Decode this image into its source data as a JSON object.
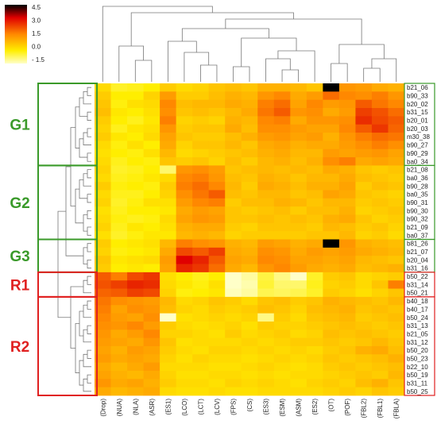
{
  "chart_data": {
    "type": "heatmap",
    "title": "",
    "legend": {
      "position": "top-left",
      "ticks": [
        4.5,
        3.0,
        1.5,
        0.0,
        -1.5
      ],
      "colors": {
        "low": "#ffffc8",
        "mid1": "#ffee00",
        "mid2": "#ff8800",
        "mid3": "#e00000",
        "high": "#000000"
      }
    },
    "columns": [
      "(Drop)",
      "(NUA)",
      "(NLA)",
      "(ASR)",
      "(ES1)",
      "(LCO)",
      "(LCT)",
      "(LCV)",
      "(FPS)",
      "(CS)",
      "(ES3)",
      "(ESM)",
      "(ASM)",
      "(ES2)",
      "(OT)",
      "(POF)",
      "(FBL2)",
      "(FBL1)",
      "(FBLA)"
    ],
    "rows": [
      "b21_06",
      "b90_33",
      "b20_02",
      "b31_15",
      "b20_01",
      "b20_03",
      "m30_38",
      "b90_27",
      "b90_29",
      "ba0_34",
      "b21_08",
      "ba0_36",
      "b90_28",
      "ba0_35",
      "b90_31",
      "b90_30",
      "b90_32",
      "b21_09",
      "ba0_37",
      "b81_26",
      "b21_07",
      "b20_04",
      "b31_16",
      "b50_22",
      "b31_14",
      "b50_21",
      "b40_18",
      "b40_17",
      "b50_24",
      "b31_13",
      "b21_05",
      "b31_12",
      "b50_20",
      "b50_23",
      "b22_10",
      "b50_19",
      "b31_11",
      "b50_25"
    ],
    "groups": [
      {
        "label": "G1",
        "color": "#3a9a2a",
        "rows": [
          0,
          9
        ]
      },
      {
        "label": "G2",
        "color": "#3a9a2a",
        "rows": [
          10,
          18
        ]
      },
      {
        "label": "G3",
        "color": "#3a9a2a",
        "rows": [
          19,
          22
        ]
      },
      {
        "label": "R1",
        "color": "#e02020",
        "rows": [
          23,
          25
        ]
      },
      {
        "label": "R2",
        "color": "#e02020",
        "rows": [
          26,
          37
        ]
      }
    ],
    "values": [
      [
        0.3,
        -0.3,
        -0.2,
        0.0,
        0.5,
        0.3,
        0.4,
        0.6,
        0.7,
        0.6,
        0.9,
        0.9,
        0.8,
        0.6,
        4.5,
        1.3,
        1.2,
        1.0,
        0.9
      ],
      [
        0.5,
        0.0,
        0.0,
        0.4,
        1.2,
        0.5,
        0.5,
        0.7,
        0.9,
        0.8,
        1.3,
        1.5,
        1.0,
        1.2,
        1.8,
        1.5,
        1.4,
        1.6,
        1.3
      ],
      [
        0.6,
        -0.1,
        0.2,
        0.3,
        1.5,
        0.7,
        0.8,
        0.8,
        1.0,
        0.9,
        1.6,
        1.8,
        1.1,
        1.5,
        1.2,
        1.3,
        2.0,
        1.7,
        1.5
      ],
      [
        0.7,
        0.1,
        0.0,
        0.2,
        1.4,
        0.6,
        0.7,
        0.6,
        0.8,
        1.0,
        1.7,
        2.0,
        1.3,
        1.4,
        1.0,
        1.2,
        2.3,
        2.1,
        1.8
      ],
      [
        0.5,
        0.0,
        -0.2,
        0.1,
        1.6,
        0.4,
        0.5,
        0.4,
        0.9,
        0.8,
        1.5,
        1.6,
        1.0,
        1.3,
        1.3,
        1.4,
        2.5,
        2.2,
        2.0
      ],
      [
        0.4,
        -0.2,
        0.1,
        0.2,
        1.3,
        0.5,
        0.6,
        0.6,
        1.0,
        0.7,
        1.4,
        1.4,
        1.2,
        1.1,
        1.1,
        1.5,
        2.0,
        2.4,
        1.9
      ],
      [
        0.5,
        0.1,
        0.0,
        0.3,
        1.1,
        0.6,
        0.5,
        0.5,
        0.7,
        0.9,
        1.2,
        1.3,
        1.1,
        1.2,
        0.9,
        1.3,
        1.6,
        1.8,
        1.7
      ],
      [
        0.3,
        -0.1,
        0.2,
        0.0,
        1.0,
        0.4,
        0.6,
        0.6,
        0.8,
        0.6,
        1.0,
        1.1,
        0.9,
        1.0,
        1.0,
        1.2,
        1.4,
        1.6,
        1.4
      ],
      [
        0.2,
        0.0,
        -0.1,
        0.2,
        0.8,
        0.3,
        0.4,
        0.5,
        0.6,
        0.7,
        0.9,
        1.0,
        0.8,
        0.8,
        1.2,
        1.1,
        1.2,
        1.3,
        1.1
      ],
      [
        0.3,
        -0.2,
        0.0,
        -0.1,
        0.6,
        0.5,
        0.6,
        0.4,
        0.7,
        0.5,
        0.8,
        0.9,
        0.7,
        0.9,
        1.4,
        1.6,
        1.0,
        1.1,
        1.0
      ],
      [
        0.4,
        -0.3,
        -0.2,
        0.0,
        -0.8,
        1.3,
        1.4,
        1.2,
        0.6,
        0.7,
        0.8,
        0.7,
        0.8,
        0.7,
        1.0,
        0.9,
        0.6,
        0.5,
        0.6
      ],
      [
        0.3,
        -0.2,
        -0.1,
        0.1,
        0.3,
        1.5,
        1.6,
        1.3,
        0.7,
        0.6,
        0.9,
        0.8,
        0.6,
        0.8,
        0.8,
        1.0,
        0.7,
        0.6,
        0.5
      ],
      [
        0.5,
        -0.1,
        0.0,
        -0.1,
        0.5,
        1.6,
        1.8,
        1.5,
        0.8,
        0.5,
        1.0,
        0.9,
        0.7,
        0.9,
        0.9,
        1.1,
        0.5,
        0.7,
        0.6
      ],
      [
        0.3,
        -0.2,
        -0.2,
        0.0,
        0.4,
        1.4,
        1.7,
        2.0,
        0.7,
        0.6,
        0.8,
        0.8,
        0.6,
        0.7,
        1.1,
        1.0,
        0.6,
        0.5,
        0.4
      ],
      [
        0.4,
        -0.3,
        -0.1,
        0.2,
        0.2,
        1.2,
        1.5,
        1.6,
        0.5,
        0.7,
        0.7,
        0.9,
        0.8,
        0.6,
        0.8,
        0.8,
        0.5,
        0.6,
        0.5
      ],
      [
        0.2,
        -0.2,
        0.0,
        0.0,
        0.1,
        1.0,
        1.2,
        1.1,
        0.6,
        0.5,
        0.6,
        0.7,
        0.5,
        0.7,
        0.7,
        0.9,
        0.4,
        0.5,
        0.6
      ],
      [
        0.3,
        -0.1,
        -0.2,
        -0.1,
        0.3,
        1.1,
        1.3,
        1.2,
        0.6,
        0.6,
        0.7,
        0.6,
        0.7,
        0.6,
        0.9,
        1.0,
        0.6,
        0.4,
        0.5
      ],
      [
        0.4,
        -0.2,
        0.1,
        0.0,
        0.2,
        0.9,
        1.0,
        1.0,
        0.5,
        0.4,
        0.6,
        0.6,
        0.6,
        0.5,
        0.8,
        0.7,
        0.5,
        0.6,
        0.4
      ],
      [
        0.2,
        -0.3,
        -0.1,
        0.1,
        0.1,
        0.8,
        0.9,
        0.8,
        0.4,
        0.5,
        0.5,
        0.5,
        0.5,
        0.6,
        0.6,
        0.8,
        0.4,
        0.5,
        0.3
      ],
      [
        0.5,
        0.0,
        0.1,
        0.2,
        0.8,
        1.6,
        1.4,
        1.3,
        0.9,
        0.8,
        1.2,
        1.1,
        0.9,
        1.0,
        4.5,
        1.3,
        0.9,
        0.8,
        0.7
      ],
      [
        0.4,
        -0.1,
        0.0,
        0.1,
        1.0,
        2.2,
        2.0,
        2.3,
        1.0,
        0.9,
        1.4,
        1.3,
        1.0,
        1.2,
        1.1,
        1.2,
        1.0,
        0.9,
        0.8
      ],
      [
        0.6,
        0.1,
        0.2,
        0.3,
        1.2,
        3.0,
        2.6,
        2.0,
        1.1,
        1.0,
        1.5,
        1.4,
        1.1,
        1.1,
        1.0,
        1.1,
        0.8,
        0.7,
        0.6
      ],
      [
        0.5,
        0.0,
        0.1,
        0.0,
        1.1,
        2.6,
        2.4,
        1.8,
        1.0,
        0.8,
        1.3,
        1.5,
        1.2,
        1.0,
        0.9,
        1.0,
        0.7,
        0.8,
        0.9
      ],
      [
        2.0,
        1.6,
        2.2,
        2.4,
        0.2,
        0.0,
        -0.2,
        0.0,
        -1.5,
        -1.2,
        -0.5,
        -1.0,
        -1.8,
        -0.3,
        0.5,
        0.6,
        0.3,
        0.4,
        0.5
      ],
      [
        2.1,
        2.3,
        2.6,
        2.5,
        0.3,
        0.1,
        -0.1,
        0.2,
        -1.5,
        -1.3,
        -0.4,
        -0.8,
        -0.8,
        -0.2,
        0.4,
        0.5,
        0.3,
        0.6,
        1.6
      ],
      [
        1.9,
        2.0,
        2.3,
        2.2,
        0.4,
        -0.1,
        0.0,
        0.1,
        -1.4,
        -1.2,
        -0.6,
        -0.7,
        -0.6,
        -0.3,
        0.5,
        0.4,
        0.2,
        0.4,
        0.6
      ],
      [
        1.7,
        1.4,
        1.3,
        1.2,
        0.8,
        0.3,
        0.4,
        0.6,
        0.5,
        0.3,
        0.6,
        0.7,
        0.5,
        0.6,
        0.9,
        0.8,
        0.7,
        0.6,
        0.8
      ],
      [
        1.6,
        1.1,
        1.4,
        1.3,
        0.7,
        0.4,
        0.3,
        0.5,
        0.4,
        0.5,
        0.7,
        0.6,
        0.4,
        0.7,
        0.8,
        0.9,
        0.6,
        0.7,
        0.6
      ],
      [
        1.5,
        1.2,
        1.1,
        1.4,
        -1.5,
        0.2,
        0.3,
        0.4,
        0.3,
        0.4,
        -1.0,
        0.5,
        0.3,
        0.6,
        0.7,
        0.8,
        0.5,
        0.6,
        0.7
      ],
      [
        1.4,
        1.3,
        1.5,
        1.2,
        0.5,
        0.3,
        0.2,
        0.3,
        0.4,
        0.2,
        0.5,
        0.4,
        0.4,
        0.5,
        0.6,
        0.7,
        0.6,
        0.5,
        0.6
      ],
      [
        1.3,
        1.0,
        1.2,
        1.5,
        0.4,
        0.4,
        0.3,
        0.2,
        0.5,
        0.3,
        0.4,
        0.5,
        0.3,
        0.4,
        0.7,
        0.6,
        0.7,
        0.6,
        0.5
      ],
      [
        1.2,
        1.1,
        1.0,
        1.3,
        0.6,
        0.2,
        0.3,
        0.3,
        0.3,
        0.4,
        0.3,
        0.4,
        0.5,
        0.5,
        0.6,
        0.5,
        0.6,
        0.8,
        0.6
      ],
      [
        1.1,
        0.9,
        1.2,
        1.1,
        0.5,
        0.3,
        0.2,
        0.4,
        0.4,
        0.3,
        0.4,
        0.3,
        0.4,
        0.3,
        0.5,
        0.6,
        0.9,
        1.0,
        0.7
      ],
      [
        1.2,
        1.0,
        1.1,
        1.0,
        0.4,
        0.2,
        0.4,
        0.3,
        0.3,
        0.2,
        0.3,
        0.4,
        0.3,
        0.4,
        0.6,
        0.5,
        0.6,
        0.7,
        0.9
      ],
      [
        1.0,
        0.8,
        1.0,
        1.2,
        0.3,
        0.3,
        0.3,
        0.2,
        0.2,
        0.3,
        0.4,
        0.3,
        0.2,
        0.3,
        0.5,
        0.6,
        0.5,
        0.6,
        0.7
      ],
      [
        1.1,
        0.9,
        0.8,
        1.0,
        0.4,
        0.2,
        0.2,
        0.3,
        0.3,
        0.2,
        0.3,
        0.2,
        0.3,
        0.3,
        0.4,
        0.5,
        0.6,
        0.5,
        0.8
      ],
      [
        1.3,
        1.0,
        1.1,
        0.9,
        0.5,
        0.3,
        0.3,
        0.2,
        0.4,
        0.3,
        0.4,
        0.3,
        0.2,
        0.4,
        0.5,
        0.4,
        0.7,
        0.9,
        0.6
      ],
      [
        1.0,
        0.8,
        0.9,
        1.0,
        0.3,
        0.2,
        0.2,
        0.3,
        0.2,
        0.2,
        0.3,
        0.3,
        0.3,
        0.3,
        0.4,
        0.5,
        0.4,
        0.6,
        0.5
      ]
    ]
  }
}
